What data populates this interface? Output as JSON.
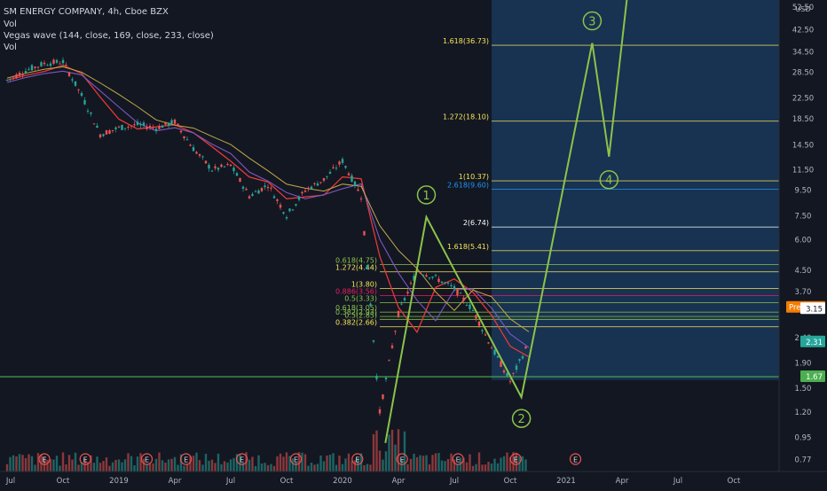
{
  "header": {
    "title": "SM ENERGY COMPANY, 4h, Cboe BZX",
    "indicator_1": "Vol",
    "indicator_2": "Vegas wave (144, close, 169, close, 233, close)",
    "indicator_3": "Vol"
  },
  "price_axis": {
    "currency": "USD",
    "ticks": [
      "52.50",
      "42.50",
      "34.50",
      "28.50",
      "22.50",
      "18.50",
      "14.50",
      "11.50",
      "9.50",
      "7.50",
      "6.00",
      "4.50",
      "3.70",
      "2.40",
      "1.90",
      "1.50",
      "1.20",
      "0.95",
      "0.77"
    ],
    "badges": [
      {
        "label": "Pre",
        "value": "3.19",
        "bg": "#f57c00",
        "fg": "#ffffff"
      },
      {
        "label": "",
        "value": "3.15",
        "bg": "#ffffff",
        "fg": "#131722"
      },
      {
        "label": "",
        "value": "2.31",
        "bg": "#26a69a",
        "fg": "#ffffff"
      },
      {
        "label": "",
        "value": "1.67",
        "bg": "#4caf50",
        "fg": "#ffffff"
      }
    ]
  },
  "time_axis": {
    "ticks": [
      {
        "label": "Jul",
        "t": 0
      },
      {
        "label": "Oct",
        "t": 3
      },
      {
        "label": "2019",
        "t": 6
      },
      {
        "label": "Apr",
        "t": 9
      },
      {
        "label": "Jul",
        "t": 12
      },
      {
        "label": "Oct",
        "t": 15
      },
      {
        "label": "2020",
        "t": 18
      },
      {
        "label": "Apr",
        "t": 21
      },
      {
        "label": "Jul",
        "t": 24
      },
      {
        "label": "Oct",
        "t": 27
      },
      {
        "label": "2021",
        "t": 30
      },
      {
        "label": "Apr",
        "t": 33
      },
      {
        "label": "Jul",
        "t": 36
      },
      {
        "label": "Oct",
        "t": 39
      }
    ]
  },
  "fib_levels": [
    {
      "label": "1.618(36.73)",
      "price": 36.73,
      "color": "#f6e65a"
    },
    {
      "label": "1.272(18.10)",
      "price": 18.1,
      "color": "#f6e65a"
    },
    {
      "label": "1(10.37)",
      "price": 10.37,
      "color": "#f6e65a"
    },
    {
      "label": "2.618(9.60)",
      "price": 9.6,
      "color": "#2196f3"
    },
    {
      "label": "2(6.74)",
      "price": 6.74,
      "color": "#ffffff"
    },
    {
      "label": "1.618(5.41)",
      "price": 5.41,
      "color": "#f6e65a"
    },
    {
      "label": "0.618(4.75)",
      "price": 4.75,
      "color": "#8bc34a"
    },
    {
      "label": "1.272(4.44)",
      "price": 4.44,
      "color": "#f6e65a"
    },
    {
      "label": "1(3.80)",
      "price": 3.8,
      "color": "#f6e65a"
    },
    {
      "label": "0.886(3.56)",
      "price": 3.56,
      "color": "#e91e63"
    },
    {
      "label": "0.5(3.33)",
      "price": 3.33,
      "color": "#8bc34a"
    },
    {
      "label": "0.618(3.05)",
      "price": 3.05,
      "color": "#8bc34a"
    },
    {
      "label": "0.382(2.93)",
      "price": 2.93,
      "color": "#8bc34a"
    },
    {
      "label": "0.5(2.85)",
      "price": 2.85,
      "color": "#8bc34a"
    },
    {
      "label": "0.382(2.66)",
      "price": 2.66,
      "color": "#f6e65a"
    }
  ],
  "waves": [
    {
      "label": "1",
      "t": 22.5,
      "price": 7.4
    },
    {
      "label": "2",
      "t": 27.6,
      "price": 1.38
    },
    {
      "label": "3",
      "t": 31.4,
      "price": 37.5
    },
    {
      "label": "4",
      "t": 32.3,
      "price": 13.0
    }
  ],
  "earnings_marker": "E",
  "colors": {
    "background": "#131722",
    "up": "#26a69a",
    "down": "#ef5350",
    "target_zone": "#1a3a5e",
    "support": "#4caf50",
    "wave": "#8bc34a",
    "ma_red": "#e53935",
    "ma_blue": "#7e57c2",
    "ma_yellow": "#c0a84a"
  },
  "chart_data": {
    "type": "line",
    "title": "SM ENERGY COMPANY, 4h, Cboe BZX",
    "xlabel": "",
    "ylabel": "USD",
    "ylim": [
      0.7,
      56
    ],
    "log_scale": true,
    "series": [
      {
        "name": "",
        "x": [
          "2018-07",
          "2018-08",
          "2018-09",
          "2018-10",
          "2018-11",
          "2018-12",
          "2019-01",
          "2019-02",
          "2019-03",
          "2019-04",
          "2019-05",
          "2019-06",
          "2019-07",
          "2019-08",
          "2019-09",
          "2019-10",
          "2019-11",
          "2019-12",
          "2020-01",
          "2020-02",
          "2020-03",
          "2020-04",
          "2020-05",
          "2020-06",
          "2020-07",
          "2020-08",
          "2020-09",
          "2020-10",
          "2020-11"
        ],
        "values": [
          26.5,
          29.0,
          31.0,
          31.5,
          23.0,
          16.0,
          17.0,
          17.5,
          17.0,
          18.0,
          14.0,
          11.5,
          12.0,
          9.0,
          10.0,
          7.5,
          9.5,
          10.5,
          12.5,
          9.0,
          1.2,
          3.0,
          4.5,
          4.2,
          3.8,
          3.1,
          2.2,
          1.6,
          2.3
        ]
      }
    ],
    "support_line": 1.67,
    "annotations": [
      "1",
      "2",
      "3",
      "4"
    ]
  }
}
